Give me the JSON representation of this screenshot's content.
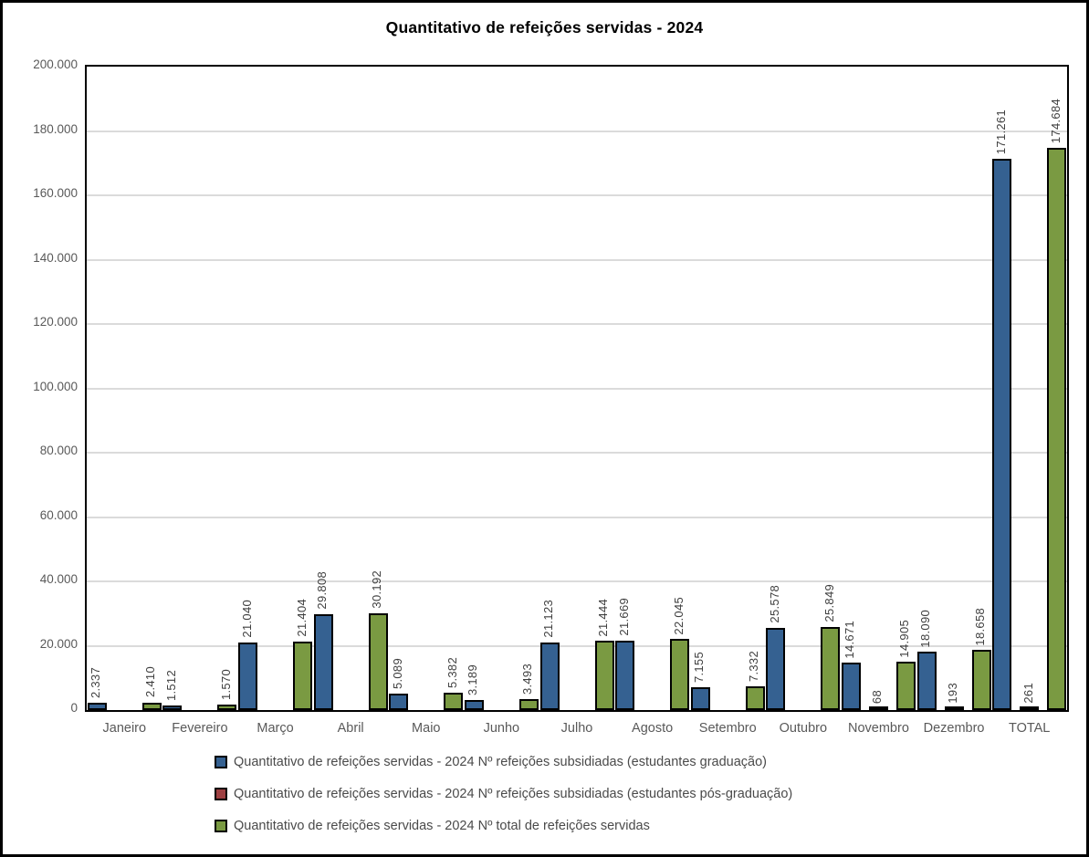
{
  "title": "Quantitativo de refeições servidas - 2024",
  "chart_data": {
    "type": "bar",
    "title": "Quantitativo de refeições servidas - 2024",
    "categories": [
      "Janeiro",
      "Fevereiro",
      "Março",
      "Abril",
      "Maio",
      "Junho",
      "Julho",
      "Agosto",
      "Setembro",
      "Outubro",
      "Novembro",
      "Dezembro",
      "TOTAL"
    ],
    "series": [
      {
        "name": "Quantitativo de refeições servidas - 2024 Nº refeições subsidiadas (estudantes graduação)",
        "color": "#356191",
        "values": [
          2337,
          1512,
          21040,
          29808,
          5089,
          3189,
          21123,
          21669,
          7155,
          25578,
          14671,
          18090,
          171261
        ],
        "labels": [
          "2.337",
          "1.512",
          "21.040",
          "29.808",
          "5.089",
          "3.189",
          "21.123",
          "21.669",
          "7.155",
          "25.578",
          "14.671",
          "18.090",
          "171.261"
        ]
      },
      {
        "name": "Quantitativo de refeições servidas - 2024 Nº refeições subsidiadas (estudantes pós-graduação)",
        "color": "#9E4042",
        "values": [
          0,
          0,
          0,
          0,
          0,
          0,
          0,
          0,
          0,
          0,
          68,
          193,
          261
        ],
        "labels": [
          "",
          "",
          "",
          "",
          "",
          "",
          "",
          "",
          "",
          "",
          "68",
          "193",
          "261"
        ]
      },
      {
        "name": "Quantitativo de refeições servidas - 2024 Nº total de refeições servidas",
        "color": "#7A9A42",
        "values": [
          2410,
          1570,
          21404,
          30192,
          5382,
          3493,
          21444,
          22045,
          7332,
          25849,
          14905,
          18658,
          174684
        ],
        "labels": [
          "2.410",
          "1.570",
          "21.404",
          "30.192",
          "5.382",
          "3.493",
          "21.444",
          "22.045",
          "7.332",
          "25.849",
          "14.905",
          "18.658",
          "174.684"
        ]
      }
    ],
    "ylim": [
      0,
      200000
    ],
    "ytick_step": 20000,
    "ytick_labels": [
      "0",
      "20.000",
      "40.000",
      "60.000",
      "80.000",
      "100.000",
      "120.000",
      "140.000",
      "160.000",
      "180.000",
      "200.000"
    ],
    "grid": true,
    "legend_position": "bottom"
  }
}
